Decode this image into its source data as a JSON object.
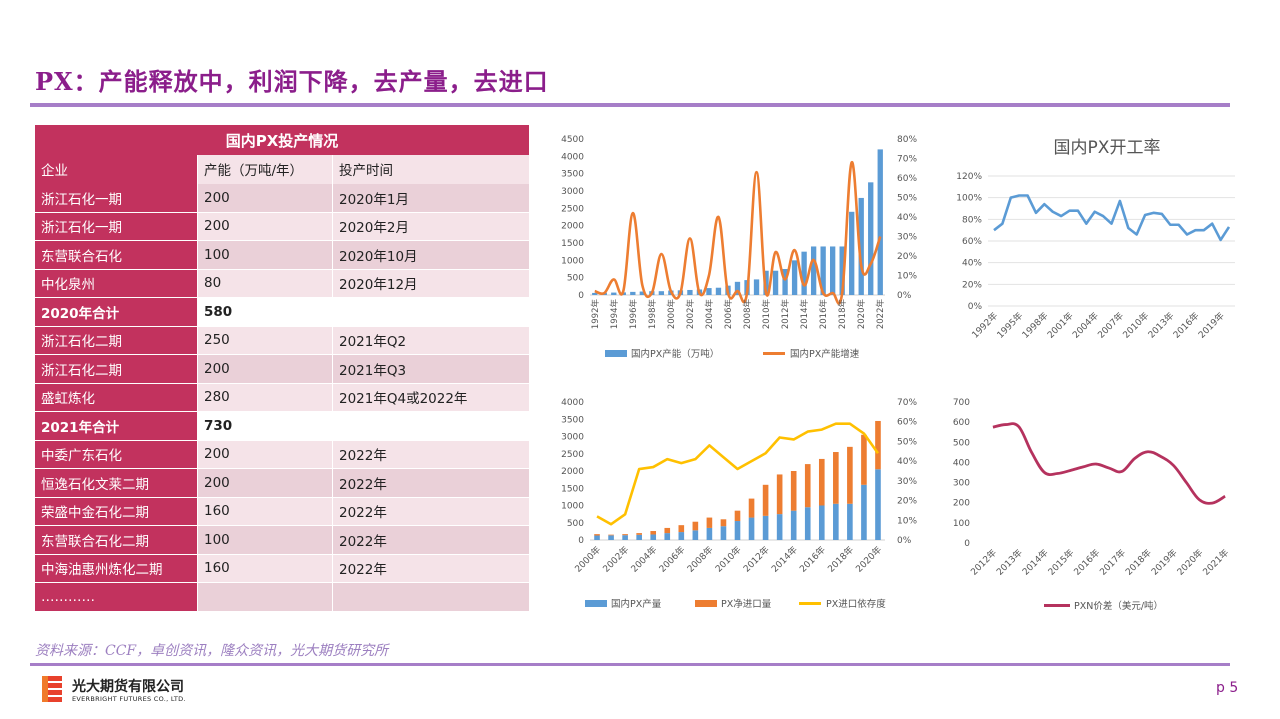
{
  "title": "PX：产能释放中，利润下降，去产量，去进口",
  "table": {
    "caption": "国内PX投产情况",
    "headers": [
      "企业",
      "产能（万吨/年）",
      "投产时间"
    ],
    "rows": [
      [
        "浙江石化一期",
        "200",
        "2020年1月"
      ],
      [
        "浙江石化一期",
        "200",
        "2020年2月"
      ],
      [
        "东营联合石化",
        "100",
        "2020年10月"
      ],
      [
        "中化泉州",
        "80",
        "2020年12月"
      ],
      [
        "2020年合计",
        "580",
        ""
      ],
      [
        "浙江石化二期",
        "250",
        "2021年Q2"
      ],
      [
        "浙江石化二期",
        "200",
        "2021年Q3"
      ],
      [
        "盛虹炼化",
        "280",
        "2021年Q4或2022年"
      ],
      [
        "2021年合计",
        "730",
        ""
      ],
      [
        "中委广东石化",
        "200",
        "2022年"
      ],
      [
        "恒逸石化文莱二期",
        "200",
        "2022年"
      ],
      [
        "荣盛中金石化二期",
        "160",
        "2022年"
      ],
      [
        "东营联合石化二期",
        "100",
        "2022年"
      ],
      [
        "中海油惠州炼化二期",
        "160",
        "2022年"
      ],
      [
        "…………",
        "",
        ""
      ]
    ]
  },
  "source": "资料来源：CCF，卓创资讯，隆众资讯，光大期货研究所",
  "logo": {
    "cn": "光大期货有限公司",
    "en": "EVERBRIGHT FUTURES CO., LTD."
  },
  "page": "p 5",
  "colors": {
    "title": "#8b1e8b",
    "table_red": "#c2325e",
    "table_pink": "#f5e3e8",
    "blue": "#5b9bd5",
    "orange": "#ed7d31",
    "yellow": "#ffc000",
    "maroon": "#b5325e"
  },
  "chart_data": [
    {
      "type": "bar+line",
      "title": "",
      "x": [
        "1992年",
        "1993年",
        "1994年",
        "1995年",
        "1996年",
        "1997年",
        "1998年",
        "1999年",
        "2000年",
        "2001年",
        "2002年",
        "2003年",
        "2004年",
        "2005年",
        "2006年",
        "2007年",
        "2008年",
        "2009年",
        "2010年",
        "2011年",
        "2012年",
        "2013年",
        "2014年",
        "2015年",
        "2016年",
        "2017年",
        "2018年",
        "2019年",
        "2020年",
        "2021年",
        "2022年"
      ],
      "x_tick_labels": [
        "1992年",
        "1994年",
        "1996年",
        "1998年",
        "2000年",
        "2002年",
        "2004年",
        "2006年",
        "2008年",
        "2010年",
        "2012年",
        "2014年",
        "2016年",
        "2018年",
        "2020年",
        "2022年"
      ],
      "series": [
        {
          "name": "国内PX产能（万吨）",
          "type": "bar",
          "axis": "left",
          "values": [
            60,
            65,
            70,
            75,
            90,
            100,
            110,
            110,
            130,
            135,
            145,
            160,
            200,
            210,
            270,
            380,
            430,
            450,
            700,
            700,
            750,
            1000,
            1250,
            1400,
            1400,
            1400,
            1400,
            2400,
            2800,
            3250,
            4200
          ]
        },
        {
          "name": "国内PX产能增速",
          "type": "line",
          "axis": "right",
          "values": [
            0.02,
            0.01,
            0.08,
            0.02,
            0.42,
            0.05,
            0.01,
            0.21,
            0.02,
            0.01,
            0.29,
            0.01,
            0.1,
            0.4,
            0.01,
            0.02,
            0.01,
            0.63,
            0.01,
            0.22,
            0.08,
            0.23,
            0.05,
            0.18,
            0.01,
            0.01,
            0.01,
            0.68,
            0.15,
            0.16,
            0.3
          ]
        }
      ],
      "left_axis": {
        "min": 0,
        "max": 4500,
        "ticks": [
          0,
          500,
          1000,
          1500,
          2000,
          2500,
          3000,
          3500,
          4000,
          4500
        ]
      },
      "right_axis": {
        "min": 0,
        "max": 0.8,
        "ticks": [
          "0%",
          "10%",
          "20%",
          "30%",
          "40%",
          "50%",
          "60%",
          "70%",
          "80%"
        ]
      },
      "legend": "bottom"
    },
    {
      "type": "line",
      "title": "国内PX开工率",
      "x": [
        "1992年",
        "1993年",
        "1994年",
        "1995年",
        "1996年",
        "1997年",
        "1998年",
        "1999年",
        "2000年",
        "2001年",
        "2002年",
        "2003年",
        "2004年",
        "2005年",
        "2006年",
        "2007年",
        "2008年",
        "2009年",
        "2010年",
        "2011年",
        "2012年",
        "2013年",
        "2014年",
        "2015年",
        "2016年",
        "2017年",
        "2018年",
        "2019年",
        "2020年"
      ],
      "x_tick_labels": [
        "1992年",
        "1995年",
        "1998年",
        "2001年",
        "2004年",
        "2007年",
        "2010年",
        "2013年",
        "2016年",
        "2019年"
      ],
      "series": [
        {
          "name": "国内PX开工率",
          "values": [
            0.7,
            0.76,
            1.0,
            1.02,
            1.02,
            0.86,
            0.94,
            0.87,
            0.83,
            0.88,
            0.88,
            0.76,
            0.87,
            0.83,
            0.76,
            0.97,
            0.72,
            0.66,
            0.84,
            0.86,
            0.85,
            0.75,
            0.75,
            0.66,
            0.7,
            0.7,
            0.76,
            0.61,
            0.73
          ]
        }
      ],
      "y_axis": {
        "min": 0,
        "max": 1.2,
        "ticks": [
          "0%",
          "20%",
          "40%",
          "60%",
          "80%",
          "100%",
          "120%"
        ]
      },
      "legend": "none"
    },
    {
      "type": "stacked-bar+line",
      "title": "",
      "x": [
        "2000年",
        "2001年",
        "2002年",
        "2003年",
        "2004年",
        "2005年",
        "2006年",
        "2007年",
        "2008年",
        "2009年",
        "2010年",
        "2011年",
        "2012年",
        "2013年",
        "2014年",
        "2015年",
        "2016年",
        "2017年",
        "2018年",
        "2019年",
        "2020年"
      ],
      "x_tick_labels": [
        "2000年",
        "2002年",
        "2004年",
        "2006年",
        "2008年",
        "2010年",
        "2012年",
        "2014年",
        "2016年",
        "2018年",
        "2020年"
      ],
      "series": [
        {
          "name": "国内PX产量",
          "type": "bar",
          "stack": "s",
          "axis": "left",
          "values": [
            130,
            135,
            140,
            150,
            160,
            200,
            230,
            280,
            350,
            400,
            550,
            650,
            700,
            750,
            850,
            950,
            1000,
            1050,
            1050,
            1600,
            2050
          ]
        },
        {
          "name": "PX净进口量",
          "type": "bar",
          "stack": "s",
          "axis": "left",
          "values": [
            40,
            20,
            30,
            50,
            100,
            150,
            200,
            250,
            300,
            200,
            300,
            550,
            900,
            1150,
            1150,
            1250,
            1350,
            1500,
            1650,
            1450,
            1400
          ]
        },
        {
          "name": "PX进口依存度",
          "type": "line",
          "axis": "right",
          "values": [
            0.12,
            0.08,
            0.13,
            0.36,
            0.37,
            0.41,
            0.39,
            0.41,
            0.48,
            0.42,
            0.36,
            0.4,
            0.44,
            0.52,
            0.51,
            0.55,
            0.56,
            0.59,
            0.59,
            0.54,
            0.44
          ]
        }
      ],
      "left_axis": {
        "min": 0,
        "max": 4000,
        "ticks": [
          0,
          500,
          1000,
          1500,
          2000,
          2500,
          3000,
          3500,
          4000
        ]
      },
      "right_axis": {
        "min": 0,
        "max": 0.7,
        "ticks": [
          "0%",
          "10%",
          "20%",
          "30%",
          "40%",
          "50%",
          "60%",
          "70%"
        ]
      },
      "legend": "bottom"
    },
    {
      "type": "line",
      "title": "",
      "x": [
        "2012年",
        "2013年",
        "2014年",
        "2015年",
        "2016年",
        "2017年",
        "2018年",
        "2019年",
        "2020年",
        "2021年"
      ],
      "series": [
        {
          "name": "PXN价差（美元/吨）",
          "values": [
            575,
            578,
            350,
            360,
            392,
            355,
            453,
            385,
            195,
            232
          ],
          "points": [
            [
              0,
              575
            ],
            [
              0.5,
              588
            ],
            [
              1,
              578
            ],
            [
              1.5,
              450
            ],
            [
              2,
              350
            ],
            [
              2.5,
              345
            ],
            [
              3,
              360
            ],
            [
              3.5,
              378
            ],
            [
              4,
              392
            ],
            [
              4.5,
              372
            ],
            [
              5,
              355
            ],
            [
              5.5,
              420
            ],
            [
              6,
              453
            ],
            [
              6.5,
              430
            ],
            [
              7,
              385
            ],
            [
              7.5,
              300
            ],
            [
              8,
              215
            ],
            [
              8.5,
              198
            ],
            [
              9,
              232
            ]
          ]
        }
      ],
      "y_axis": {
        "min": 0,
        "max": 700,
        "ticks": [
          0,
          100,
          200,
          300,
          400,
          500,
          600,
          700
        ]
      },
      "legend": "bottom"
    }
  ]
}
